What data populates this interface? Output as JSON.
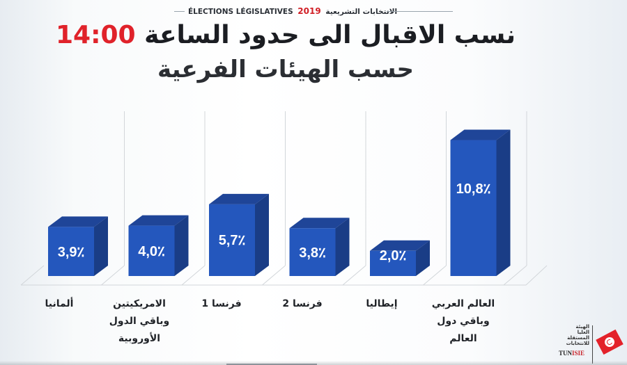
{
  "header": {
    "left_text": "ÉLECTIONS LÉGISLATIVES",
    "year": "2019",
    "arabic_text": "الانتخابات التشريعية"
  },
  "title": {
    "text": "نسب الاقبال الى حدود الساعة",
    "time": "14:00",
    "subtitle": "حسب الهيئات الفرعية"
  },
  "colors": {
    "bar_front": "#2457bd",
    "bar_side": "#1a3d86",
    "bar_top": "#1f4598",
    "accent_red": "#e0222a",
    "gridline": "#d2d6da"
  },
  "chart_data": {
    "type": "bar",
    "style": "3d-column",
    "title": "نسب الاقبال الى حدود الساعة 14:00 حسب الهيئات الفرعية",
    "categories": [
      "ألمانيا",
      "الامريكيتين وباقي الدول الأوروبية",
      "فرنسا 1",
      "فرنسا 2",
      "إيطاليا",
      "العالم العربي وباقي دول العالم"
    ],
    "values": [
      3.9,
      4.0,
      5.7,
      3.8,
      2.0,
      10.8
    ],
    "value_labels": [
      "3,9٪",
      "4,0٪",
      "5,7٪",
      "3,8٪",
      "2,0٪",
      "10,8٪"
    ],
    "unit": "%",
    "xlabel": "",
    "ylabel": "",
    "grid": true,
    "legend": "none"
  },
  "category_labels": [
    {
      "lines": [
        "ألمانيا"
      ]
    },
    {
      "lines": [
        "الامريكيتين",
        "وباقي الدول",
        "الأوروبية"
      ]
    },
    {
      "lines": [
        "فرنسا 1"
      ]
    },
    {
      "lines": [
        "فرنسا 2"
      ]
    },
    {
      "lines": [
        "إيطاليا"
      ]
    },
    {
      "lines": [
        "العالم العربي",
        "وباقي دول",
        "العالم"
      ]
    }
  ],
  "logo": {
    "arabic_lines": [
      "الهيئة",
      "العليا",
      "المستقلة",
      "للانتخابات"
    ],
    "brand_prefix": "TUN",
    "brand_highlight": "ISIE"
  }
}
